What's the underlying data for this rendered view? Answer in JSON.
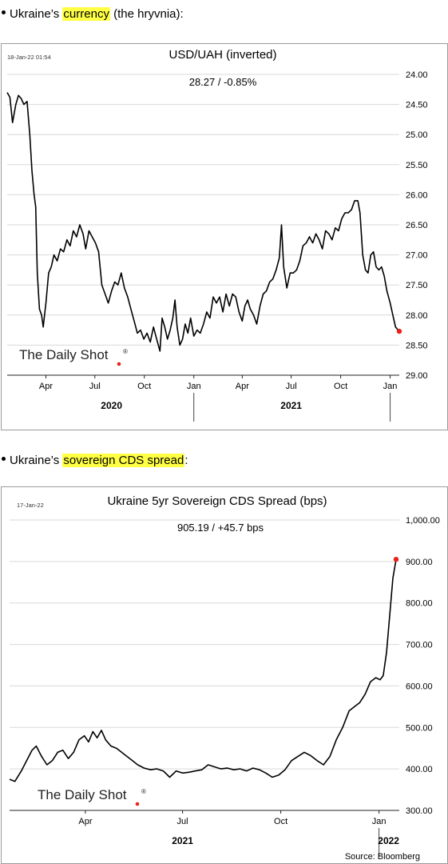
{
  "bullets": [
    {
      "prefix": "Ukraine’s ",
      "highlight": "currency",
      "suffix": " (the hryvnia):"
    },
    {
      "prefix": "Ukraine’s ",
      "highlight": "sovereign CDS spread",
      "suffix": ":"
    }
  ],
  "chart_data": [
    {
      "type": "line",
      "title": "USD/UAH (inverted)",
      "timestamp": "18-Jan-22 01:54",
      "subtitle": "28.27  /  -0.85%",
      "watermark": "The Daily Shot",
      "watermark_mark": "®",
      "y_inverted": true,
      "ylim": [
        24.0,
        29.0
      ],
      "y_ticks": [
        "24.00",
        "24.50",
        "25.00",
        "25.50",
        "26.00",
        "26.50",
        "27.00",
        "27.50",
        "28.00",
        "28.50",
        "29.00"
      ],
      "x_range": [
        "2020-01-20",
        "2022-01-18"
      ],
      "x_ticks": [
        {
          "label": "Apr",
          "date": "2020-04-01"
        },
        {
          "label": "Jul",
          "date": "2020-07-01"
        },
        {
          "label": "Oct",
          "date": "2020-10-01"
        },
        {
          "label": "Jan",
          "date": "2021-01-01"
        },
        {
          "label": "Apr",
          "date": "2021-04-01"
        },
        {
          "label": "Jul",
          "date": "2021-07-01"
        },
        {
          "label": "Oct",
          "date": "2021-10-01"
        },
        {
          "label": "Jan",
          "date": "2022-01-01"
        }
      ],
      "year_labels": [
        {
          "label": "2020",
          "date": "2020-08-01"
        },
        {
          "label": "2021",
          "date": "2021-07-01"
        }
      ],
      "year_dividers": [
        "2021-01-01",
        "2022-01-01"
      ],
      "grid": true,
      "line_color": "#000000",
      "marker_color": "#e8231c",
      "series": [
        {
          "points": [
            [
              "2020-01-20",
              24.3
            ],
            [
              "2020-01-25",
              24.38
            ],
            [
              "2020-01-30",
              24.8
            ],
            [
              "2020-02-05",
              24.5
            ],
            [
              "2020-02-10",
              24.35
            ],
            [
              "2020-02-15",
              24.4
            ],
            [
              "2020-02-20",
              24.5
            ],
            [
              "2020-02-26",
              24.45
            ],
            [
              "2020-03-02",
              25.0
            ],
            [
              "2020-03-06",
              25.6
            ],
            [
              "2020-03-10",
              26.0
            ],
            [
              "2020-03-13",
              26.2
            ],
            [
              "2020-03-16",
              27.3
            ],
            [
              "2020-03-20",
              27.9
            ],
            [
              "2020-03-24",
              28.0
            ],
            [
              "2020-03-27",
              28.2
            ],
            [
              "2020-04-01",
              27.8
            ],
            [
              "2020-04-06",
              27.3
            ],
            [
              "2020-04-11",
              27.2
            ],
            [
              "2020-04-16",
              27.0
            ],
            [
              "2020-04-22",
              27.1
            ],
            [
              "2020-04-28",
              26.9
            ],
            [
              "2020-05-04",
              26.95
            ],
            [
              "2020-05-10",
              26.75
            ],
            [
              "2020-05-16",
              26.85
            ],
            [
              "2020-05-22",
              26.6
            ],
            [
              "2020-05-28",
              26.7
            ],
            [
              "2020-06-03",
              26.5
            ],
            [
              "2020-06-09",
              26.65
            ],
            [
              "2020-06-14",
              26.9
            ],
            [
              "2020-06-20",
              26.6
            ],
            [
              "2020-06-26",
              26.7
            ],
            [
              "2020-07-02",
              26.8
            ],
            [
              "2020-07-08",
              26.95
            ],
            [
              "2020-07-14",
              27.5
            ],
            [
              "2020-07-20",
              27.65
            ],
            [
              "2020-07-26",
              27.8
            ],
            [
              "2020-08-01",
              27.6
            ],
            [
              "2020-08-07",
              27.45
            ],
            [
              "2020-08-13",
              27.5
            ],
            [
              "2020-08-19",
              27.3
            ],
            [
              "2020-08-25",
              27.55
            ],
            [
              "2020-08-31",
              27.7
            ],
            [
              "2020-09-06",
              27.9
            ],
            [
              "2020-09-12",
              28.1
            ],
            [
              "2020-09-18",
              28.3
            ],
            [
              "2020-09-24",
              28.25
            ],
            [
              "2020-09-30",
              28.4
            ],
            [
              "2020-10-06",
              28.3
            ],
            [
              "2020-10-12",
              28.45
            ],
            [
              "2020-10-18",
              28.2
            ],
            [
              "2020-10-24",
              28.4
            ],
            [
              "2020-10-30",
              28.6
            ],
            [
              "2020-11-03",
              28.05
            ],
            [
              "2020-11-08",
              28.2
            ],
            [
              "2020-11-13",
              28.4
            ],
            [
              "2020-11-18",
              28.25
            ],
            [
              "2020-11-23",
              28.05
            ],
            [
              "2020-11-27",
              27.75
            ],
            [
              "2020-12-01",
              28.2
            ],
            [
              "2020-12-06",
              28.5
            ],
            [
              "2020-12-11",
              28.4
            ],
            [
              "2020-12-16",
              28.15
            ],
            [
              "2020-12-21",
              28.3
            ],
            [
              "2020-12-26",
              28.05
            ],
            [
              "2021-01-01",
              28.35
            ],
            [
              "2021-01-07",
              28.25
            ],
            [
              "2021-01-13",
              28.3
            ],
            [
              "2021-01-19",
              28.15
            ],
            [
              "2021-01-25",
              27.95
            ],
            [
              "2021-01-31",
              28.05
            ],
            [
              "2021-02-06",
              27.7
            ],
            [
              "2021-02-12",
              27.8
            ],
            [
              "2021-02-18",
              27.7
            ],
            [
              "2021-02-24",
              27.95
            ],
            [
              "2021-03-02",
              27.65
            ],
            [
              "2021-03-08",
              27.85
            ],
            [
              "2021-03-14",
              27.65
            ],
            [
              "2021-03-20",
              27.7
            ],
            [
              "2021-03-26",
              27.95
            ],
            [
              "2021-04-01",
              28.1
            ],
            [
              "2021-04-06",
              27.85
            ],
            [
              "2021-04-11",
              27.75
            ],
            [
              "2021-04-16",
              27.9
            ],
            [
              "2021-04-22",
              28.0
            ],
            [
              "2021-04-28",
              28.15
            ],
            [
              "2021-05-04",
              27.85
            ],
            [
              "2021-05-10",
              27.65
            ],
            [
              "2021-05-16",
              27.6
            ],
            [
              "2021-05-22",
              27.45
            ],
            [
              "2021-05-28",
              27.4
            ],
            [
              "2021-06-03",
              27.25
            ],
            [
              "2021-06-09",
              27.05
            ],
            [
              "2021-06-13",
              26.5
            ],
            [
              "2021-06-17",
              27.2
            ],
            [
              "2021-06-23",
              27.55
            ],
            [
              "2021-06-29",
              27.3
            ],
            [
              "2021-07-05",
              27.3
            ],
            [
              "2021-07-11",
              27.25
            ],
            [
              "2021-07-17",
              27.1
            ],
            [
              "2021-07-23",
              26.85
            ],
            [
              "2021-07-29",
              26.8
            ],
            [
              "2021-08-04",
              26.7
            ],
            [
              "2021-08-10",
              26.8
            ],
            [
              "2021-08-16",
              26.65
            ],
            [
              "2021-08-22",
              26.75
            ],
            [
              "2021-08-28",
              26.9
            ],
            [
              "2021-09-03",
              26.6
            ],
            [
              "2021-09-09",
              26.65
            ],
            [
              "2021-09-15",
              26.75
            ],
            [
              "2021-09-21",
              26.55
            ],
            [
              "2021-09-27",
              26.6
            ],
            [
              "2021-10-03",
              26.4
            ],
            [
              "2021-10-09",
              26.3
            ],
            [
              "2021-10-15",
              26.3
            ],
            [
              "2021-10-21",
              26.25
            ],
            [
              "2021-10-27",
              26.1
            ],
            [
              "2021-11-02",
              26.1
            ],
            [
              "2021-11-06",
              26.3
            ],
            [
              "2021-11-11",
              27.0
            ],
            [
              "2021-11-16",
              27.25
            ],
            [
              "2021-11-21",
              27.3
            ],
            [
              "2021-11-26",
              27.0
            ],
            [
              "2021-12-01",
              26.95
            ],
            [
              "2021-12-06",
              27.2
            ],
            [
              "2021-12-11",
              27.25
            ],
            [
              "2021-12-16",
              27.2
            ],
            [
              "2021-12-21",
              27.35
            ],
            [
              "2021-12-26",
              27.6
            ],
            [
              "2022-01-01",
              27.8
            ],
            [
              "2022-01-06",
              28.0
            ],
            [
              "2022-01-11",
              28.2
            ],
            [
              "2022-01-18",
              28.27
            ]
          ]
        }
      ]
    },
    {
      "type": "line",
      "title": "Ukraine 5yr Sovereign CDS Spread (bps)",
      "timestamp": "17-Jan-22",
      "subtitle": "905.19  /  +45.7 bps",
      "watermark": "The Daily Shot",
      "watermark_mark": "®",
      "source": "Source: Bloomberg",
      "ylim": [
        300,
        1000
      ],
      "y_ticks": [
        "300.00",
        "400.00",
        "500.00",
        "600.00",
        "700.00",
        "800.00",
        "900.00",
        "1,000.00"
      ],
      "x_range": [
        "2021-01-20",
        "2022-01-20"
      ],
      "x_ticks": [
        {
          "label": "Apr",
          "date": "2021-04-01"
        },
        {
          "label": "Jul",
          "date": "2021-07-01"
        },
        {
          "label": "Oct",
          "date": "2021-10-01"
        },
        {
          "label": "Jan",
          "date": "2022-01-01"
        }
      ],
      "year_labels": [
        {
          "label": "2021",
          "date": "2021-07-01"
        },
        {
          "label": "2022",
          "date": "2022-01-10"
        }
      ],
      "year_dividers": [
        "2022-01-01"
      ],
      "grid": true,
      "line_color": "#000000",
      "marker_color": "#e8231c",
      "series": [
        {
          "points": [
            [
              "2021-01-20",
              375
            ],
            [
              "2021-01-25",
              370
            ],
            [
              "2021-01-31",
              395
            ],
            [
              "2021-02-05",
              420
            ],
            [
              "2021-02-10",
              445
            ],
            [
              "2021-02-14",
              455
            ],
            [
              "2021-02-19",
              430
            ],
            [
              "2021-02-24",
              410
            ],
            [
              "2021-03-01",
              420
            ],
            [
              "2021-03-06",
              440
            ],
            [
              "2021-03-11",
              445
            ],
            [
              "2021-03-16",
              425
            ],
            [
              "2021-03-21",
              440
            ],
            [
              "2021-03-26",
              470
            ],
            [
              "2021-03-31",
              480
            ],
            [
              "2021-04-04",
              465
            ],
            [
              "2021-04-08",
              490
            ],
            [
              "2021-04-12",
              475
            ],
            [
              "2021-04-16",
              493
            ],
            [
              "2021-04-20",
              470
            ],
            [
              "2021-04-25",
              455
            ],
            [
              "2021-04-30",
              450
            ],
            [
              "2021-05-05",
              440
            ],
            [
              "2021-05-10",
              430
            ],
            [
              "2021-05-15",
              420
            ],
            [
              "2021-05-20",
              410
            ],
            [
              "2021-05-26",
              402
            ],
            [
              "2021-06-01",
              398
            ],
            [
              "2021-06-07",
              400
            ],
            [
              "2021-06-13",
              395
            ],
            [
              "2021-06-19",
              380
            ],
            [
              "2021-06-25",
              395
            ],
            [
              "2021-07-01",
              390
            ],
            [
              "2021-07-07",
              392
            ],
            [
              "2021-07-13",
              395
            ],
            [
              "2021-07-19",
              398
            ],
            [
              "2021-07-25",
              410
            ],
            [
              "2021-07-31",
              405
            ],
            [
              "2021-08-06",
              400
            ],
            [
              "2021-08-12",
              402
            ],
            [
              "2021-08-18",
              398
            ],
            [
              "2021-08-24",
              400
            ],
            [
              "2021-08-30",
              395
            ],
            [
              "2021-09-05",
              402
            ],
            [
              "2021-09-11",
              398
            ],
            [
              "2021-09-17",
              390
            ],
            [
              "2021-09-23",
              380
            ],
            [
              "2021-09-29",
              385
            ],
            [
              "2021-10-05",
              398
            ],
            [
              "2021-10-11",
              420
            ],
            [
              "2021-10-17",
              430
            ],
            [
              "2021-10-23",
              440
            ],
            [
              "2021-10-29",
              432
            ],
            [
              "2021-11-04",
              420
            ],
            [
              "2021-11-10",
              410
            ],
            [
              "2021-11-16",
              430
            ],
            [
              "2021-11-22",
              470
            ],
            [
              "2021-11-28",
              500
            ],
            [
              "2021-12-04",
              540
            ],
            [
              "2021-12-09",
              550
            ],
            [
              "2021-12-14",
              560
            ],
            [
              "2021-12-19",
              580
            ],
            [
              "2021-12-24",
              610
            ],
            [
              "2021-12-29",
              620
            ],
            [
              "2022-01-02",
              615
            ],
            [
              "2022-01-05",
              625
            ],
            [
              "2022-01-08",
              680
            ],
            [
              "2022-01-11",
              770
            ],
            [
              "2022-01-14",
              860
            ],
            [
              "2022-01-17",
              905.19
            ]
          ]
        }
      ]
    }
  ]
}
